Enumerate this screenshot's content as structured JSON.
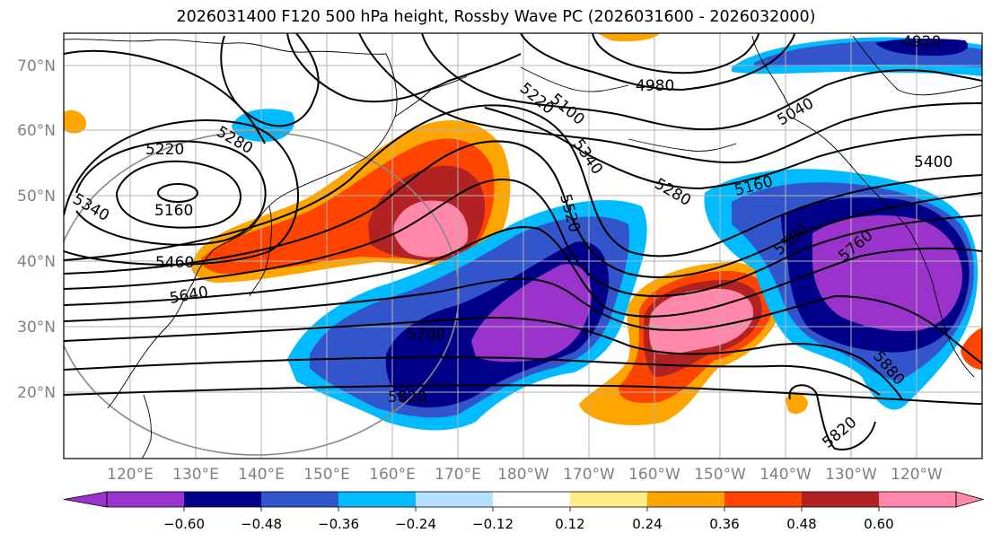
{
  "title": "2026031400 F120 500 hPa height, Rossby Wave PC (2026031600 - 2026032000)",
  "lat_labels": [
    "70°N",
    "60°N",
    "50°N",
    "40°N",
    "30°N",
    "20°N"
  ],
  "lon_labels": [
    "120°E",
    "130°E",
    "140°E",
    "150°E",
    "160°E",
    "170°E",
    "180°W",
    "170°W",
    "160°W",
    "150°W",
    "140°W",
    "130°W",
    "120°W"
  ],
  "contour_labels": [
    "4920",
    "4980",
    "5040",
    "5100",
    "5160",
    "5160",
    "5220",
    "5220",
    "5280",
    "5280",
    "5340",
    "5340",
    "5400",
    "5460",
    "5520",
    "5580",
    "5640",
    "5700",
    "5760",
    "5820",
    "5820",
    "5880"
  ],
  "colorbar": {
    "tick_labels": [
      "−0.60",
      "−0.48",
      "−0.36",
      "−0.24",
      "−0.12",
      "0.12",
      "0.24",
      "0.36",
      "0.48",
      "0.60"
    ],
    "colors": [
      "#9933cc",
      "#000088",
      "#3355cc",
      "#00bbff",
      "#b3e0ff",
      "#ffffff",
      "#ffee88",
      "#ffa500",
      "#ff4400",
      "#b22222",
      "#ff88aa"
    ]
  }
}
